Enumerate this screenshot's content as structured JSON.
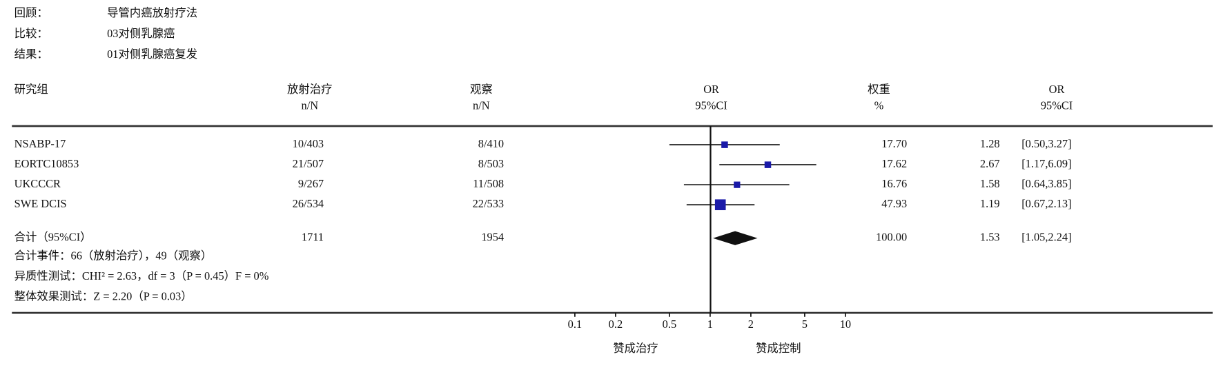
{
  "chart_data": {
    "type": "forest",
    "header": [
      {
        "label": "回顾：",
        "value": "导管内癌放射疗法"
      },
      {
        "label": "比较：",
        "value": "03对侧乳腺癌"
      },
      {
        "label": "结果：",
        "value": "01对侧乳腺癌复发"
      }
    ],
    "columns": {
      "study": "研究组",
      "treatment": [
        "放射治疗",
        "n/N"
      ],
      "control": [
        "观察",
        "n/N"
      ],
      "plot": [
        "OR",
        "95%CI"
      ],
      "weight": [
        "权重",
        "%"
      ],
      "or_ci": [
        "OR",
        "95%CI"
      ]
    },
    "studies": [
      {
        "name": "NSABP-17",
        "treatment": "10/403",
        "control": "8/410",
        "weight": {
          "value": 17.7,
          "label": "17.70"
        },
        "or": 1.28,
        "ci_low": 0.5,
        "ci_high": 3.27,
        "ci_label": "[0.50,3.27]"
      },
      {
        "name": "EORTC10853",
        "treatment": "21/507",
        "control": "8/503",
        "weight": 17.62,
        "or": 2.67,
        "ci_low": 1.17,
        "ci_high": 6.09,
        "ci_label": "[1.17,6.09]"
      },
      {
        "name": "UKCCCR",
        "treatment": "9/267",
        "control": "11/508",
        "weight": 16.76,
        "or": 1.58,
        "ci_low": 0.64,
        "ci_high": 3.85,
        "ci_label": "[0.64,3.85]"
      },
      {
        "name": "SWE DCIS",
        "treatment": "26/534",
        "control": "22/533",
        "weight": 47.93,
        "or": 1.19,
        "ci_low": 0.67,
        "ci_high": 2.13,
        "ci_label": "[0.67,2.13]"
      }
    ],
    "total": {
      "name": "合计（95%CI）",
      "treatment": 1711,
      "control": 1954,
      "weight": {
        "value": 100,
        "label": "100.00"
      },
      "or": 1.53,
      "ci_low": 1.05,
      "ci_high": 2.24,
      "ci_label": "[1.05,2.24]"
    },
    "notes": [
      "合计事件：66（放射治疗），49（观察）",
      "异质性测试：CHI² = 2.63，df = 3（P = 0.45）F = 0%",
      "整体效果测试：Z = 2.20（P = 0.03）"
    ],
    "xscale": "log",
    "xlim": [
      0.1,
      10
    ],
    "xticks": [
      0.1,
      0.2,
      0.5,
      1,
      2,
      5,
      10
    ],
    "x_labels": [
      "赞成治疗",
      "赞成控制"
    ],
    "marker_color": "#1a1aa8",
    "line_color": "#111111"
  }
}
